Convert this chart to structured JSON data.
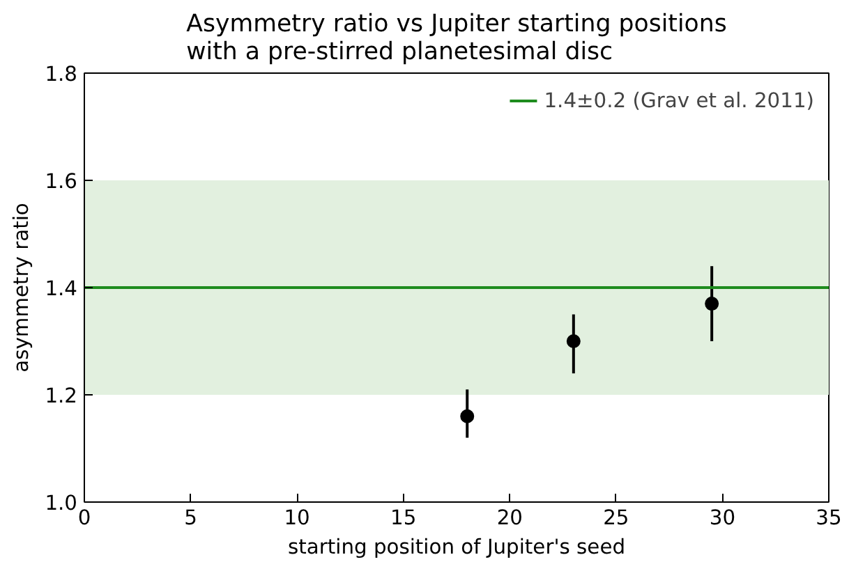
{
  "chart_data": {
    "type": "scatter",
    "title": "Asymmetry ratio vs Jupiter starting positions\nwith a pre-stirred planetesimal disc",
    "xlabel": "starting position of Jupiter's seed",
    "ylabel": "asymmetry ratio",
    "x": [
      18,
      23,
      29.5
    ],
    "series": [
      {
        "color": "#000000",
        "values": [
          1.16,
          1.3,
          1.37
        ],
        "errors": [
          [
            1.12,
            1.21
          ],
          [
            1.24,
            1.35
          ],
          [
            1.3,
            1.44
          ]
        ]
      }
    ],
    "xlim": [
      0,
      35
    ],
    "xticks": [
      0,
      5,
      10,
      15,
      20,
      25,
      30,
      35
    ],
    "ylim": [
      1.0,
      1.8
    ],
    "yticks": [
      {
        "value": 1.0,
        "label": "1.0"
      },
      {
        "value": 1.2,
        "label": "1.2"
      },
      {
        "value": 1.4,
        "label": "1.4"
      },
      {
        "value": 1.6,
        "label": "1.6"
      },
      {
        "value": 1.8,
        "label": "1.8"
      }
    ],
    "ref_lines": [
      {
        "axis": "y",
        "value": 1.4,
        "label": "1.4±0.2 (Grav et al. 2011)",
        "color": "#1e8c1e",
        "line_style": "solid"
      }
    ],
    "bands": [
      {
        "axis": "y",
        "from": 1.2,
        "to": 1.6,
        "color": "#e2f0df"
      }
    ],
    "marker": "circle",
    "legend": "top right",
    "grid": false
  }
}
